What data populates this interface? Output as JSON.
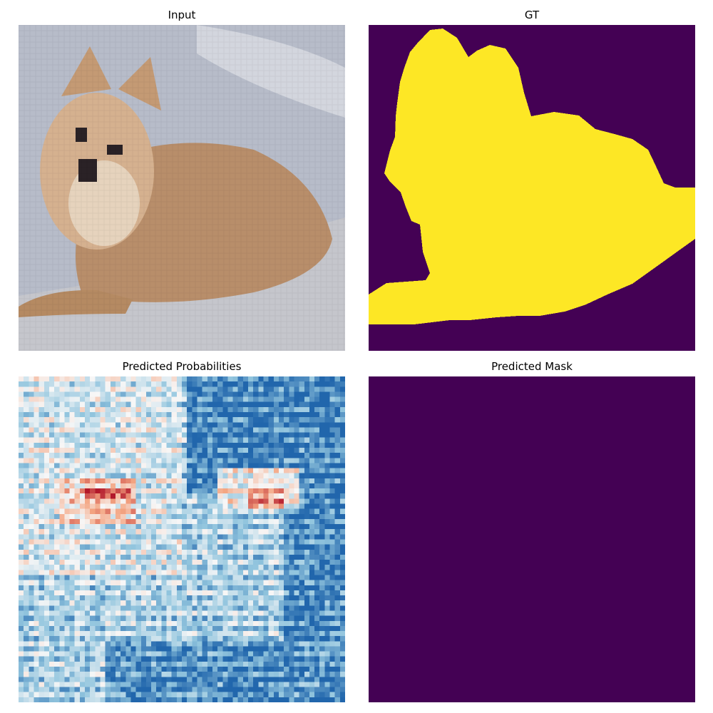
{
  "chart_data": [
    {
      "type": "image",
      "title": "Input",
      "content": "pixelated photo of a fluffy tan pomeranian dog lying on a grey-white blanket",
      "colors": {
        "background": "#b7bcc9",
        "fur": "#c9a27c",
        "fur_light": "#e6d3bd",
        "dark": "#2a2226",
        "floor": "#c5c6cc"
      }
    },
    {
      "type": "heatmap",
      "title": "GT",
      "colormap": "viridis",
      "classes": [
        0,
        1
      ],
      "colors": {
        "background": "#440154",
        "foreground": "#fde725"
      }
    },
    {
      "type": "heatmap",
      "title": "Predicted Probabilities",
      "colormap": "RdBu_r",
      "grid_resolution": [
        64,
        64
      ],
      "colors": {
        "low": "#1f5fa3",
        "mid": "#f7f7f7",
        "high": "#b2182b"
      }
    },
    {
      "type": "heatmap",
      "title": "Predicted Mask",
      "colormap": "viridis",
      "classes": [
        0
      ],
      "colors": {
        "background": "#440154"
      }
    }
  ]
}
